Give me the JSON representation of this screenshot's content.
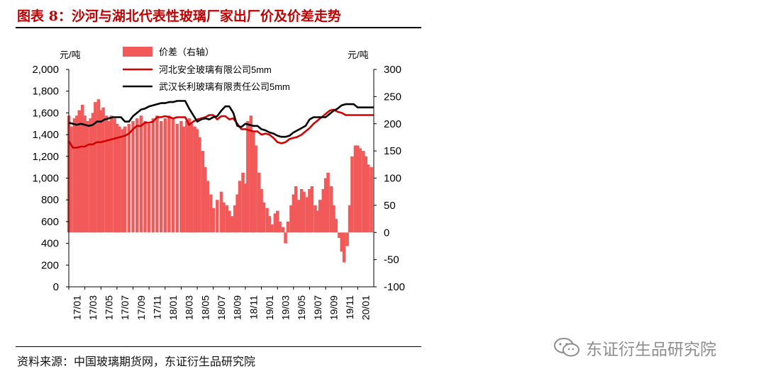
{
  "title": "图表 8：沙河与湖北代表性玻璃厂家出厂价及价差走势",
  "source": "资料来源：中国玻璃期货网，东证衍生品研究院",
  "watermark": "东证衍生品研究院",
  "wm_icon": "wechat-icon",
  "colors": {
    "title": "#c00000",
    "diff": "#f25a5a",
    "hebei": "#d40000",
    "wuhan": "#000000"
  },
  "chart_data": {
    "type": "line",
    "left_unit": "元/吨",
    "right_unit": "元/吨",
    "ylim_left": [
      0,
      2000
    ],
    "yticks_left": [
      "2,000",
      "1,800",
      "1,600",
      "1,400",
      "1,200",
      "1,000",
      "800",
      "600",
      "400",
      "200",
      "0"
    ],
    "ylim_right": [
      -100,
      300
    ],
    "yticks_right": [
      "300",
      "250",
      "200",
      "150",
      "100",
      "50",
      "0",
      "-50",
      "-100"
    ],
    "x_range": [
      0,
      38
    ],
    "xticks": [
      "17/01",
      "17/03",
      "17/05",
      "17/07",
      "17/09",
      "17/11",
      "18/01",
      "18/03",
      "18/05",
      "18/07",
      "18/09",
      "18/11",
      "19/01",
      "19/03",
      "19/05",
      "19/07",
      "19/09",
      "19/11",
      "20/01"
    ],
    "legend": [
      "价差（右轴）",
      "河北安全玻璃有限公司5mm",
      "武汉长利玻璃有限责任公司5mm"
    ],
    "series": [
      {
        "name": "价差（右轴）",
        "type": "bar",
        "axis": "right",
        "x": [
          0,
          0.3,
          0.7,
          1,
          1.3,
          1.7,
          2,
          2.3,
          2.7,
          3,
          3.3,
          3.7,
          4,
          4.3,
          4.7,
          5,
          5.3,
          5.7,
          6,
          6.3,
          6.7,
          7,
          7.5,
          8,
          8.5,
          9,
          9.5,
          10,
          10.5,
          11,
          11.5,
          12,
          12.5,
          13,
          13.5,
          14,
          14.3,
          14.7,
          15,
          15.3,
          15.7,
          16,
          16.3,
          16.7,
          17,
          17.3,
          17.7,
          18,
          18.5,
          19,
          19.3,
          19.7,
          20,
          20.3,
          20.7,
          21,
          21.3,
          21.7,
          22,
          22.3,
          22.7,
          23,
          23.3,
          23.7,
          24,
          24.3,
          24.7,
          25,
          25.3,
          25.7,
          26,
          26.3,
          26.7,
          27,
          27.3,
          27.7,
          28,
          28.3,
          28.7,
          29,
          29.3,
          29.7,
          30,
          30.3,
          30.7,
          31,
          31.3,
          31.7,
          32,
          32.3,
          32.7,
          33,
          33.3,
          33.7,
          34,
          34.3,
          34.7,
          35,
          35.3,
          35.7,
          36,
          36.3,
          36.7,
          37,
          37.3,
          37.7
        ],
        "values": [
          215,
          195,
          210,
          215,
          225,
          235,
          215,
          205,
          210,
          220,
          240,
          245,
          225,
          230,
          215,
          205,
          215,
          210,
          200,
          195,
          190,
          195,
          200,
          205,
          210,
          215,
          205,
          200,
          210,
          215,
          205,
          210,
          215,
          210,
          200,
          205,
          195,
          205,
          210,
          200,
          195,
          190,
          175,
          150,
          120,
          95,
          70,
          45,
          60,
          75,
          55,
          50,
          40,
          30,
          50,
          70,
          95,
          110,
          90,
          205,
          215,
          185,
          160,
          110,
          80,
          55,
          45,
          30,
          15,
          35,
          40,
          20,
          10,
          -20,
          20,
          50,
          70,
          85,
          60,
          80,
          75,
          65,
          80,
          85,
          50,
          40,
          60,
          80,
          100,
          110,
          85,
          50,
          25,
          -10,
          -35,
          -55,
          -25,
          50,
          140,
          160,
          160,
          155,
          150,
          140,
          125,
          120
        ]
      },
      {
        "name": "河北安全玻璃有限公司5mm",
        "axis": "left",
        "x": [
          0,
          0.5,
          1,
          1.5,
          2,
          2.5,
          3,
          3.5,
          4,
          4.5,
          5,
          5.5,
          6,
          6.5,
          7,
          7.5,
          8,
          8.5,
          9,
          9.5,
          10,
          10.5,
          11,
          11.5,
          12,
          12.5,
          13,
          13.5,
          14,
          14.5,
          15,
          15.5,
          16,
          16.5,
          17,
          17.5,
          18,
          18.5,
          19,
          19.5,
          20,
          20.5,
          21,
          21.5,
          22,
          22.5,
          23,
          23.5,
          24,
          24.5,
          25,
          25.5,
          26,
          26.5,
          27,
          27.5,
          28,
          28.5,
          29,
          29.5,
          30,
          30.5,
          31,
          31.5,
          32,
          32.5,
          33,
          33.5,
          34,
          34.5,
          35,
          35.5,
          36,
          36.5,
          37,
          37.5,
          38
        ],
        "values": [
          1340,
          1280,
          1280,
          1290,
          1290,
          1310,
          1310,
          1330,
          1330,
          1340,
          1350,
          1360,
          1370,
          1380,
          1390,
          1410,
          1450,
          1480,
          1480,
          1510,
          1510,
          1520,
          1560,
          1560,
          1570,
          1560,
          1550,
          1560,
          1560,
          1560,
          1490,
          1520,
          1540,
          1550,
          1560,
          1580,
          1580,
          1540,
          1570,
          1570,
          1540,
          1550,
          1500,
          1450,
          1450,
          1440,
          1430,
          1430,
          1400,
          1410,
          1400,
          1370,
          1330,
          1320,
          1330,
          1360,
          1370,
          1380,
          1400,
          1430,
          1460,
          1500,
          1530,
          1560,
          1590,
          1620,
          1630,
          1610,
          1600,
          1580,
          1580,
          1580,
          1580,
          1580,
          1580,
          1580,
          1580
        ]
      },
      {
        "name": "武汉长利玻璃有限责任公司5mm",
        "axis": "left",
        "x": [
          0,
          0.5,
          1,
          1.5,
          2,
          2.5,
          3,
          3.5,
          4,
          4.5,
          5,
          5.5,
          6,
          6.5,
          7,
          7.5,
          8,
          8.5,
          9,
          9.5,
          10,
          10.5,
          11,
          11.5,
          12,
          12.5,
          13,
          13.5,
          14,
          14.5,
          15,
          15.5,
          16,
          16.5,
          17,
          17.5,
          18,
          18.5,
          19,
          19.5,
          20,
          20.5,
          21,
          21.5,
          22,
          22.5,
          23,
          23.5,
          24,
          24.5,
          25,
          25.5,
          26,
          26.5,
          27,
          27.5,
          28,
          28.5,
          29,
          29.5,
          30,
          30.5,
          31,
          31.5,
          32,
          32.5,
          33,
          33.5,
          34,
          34.5,
          35,
          35.5,
          36,
          36.5,
          37,
          37.5,
          38
        ],
        "values": [
          1510,
          1500,
          1490,
          1500,
          1490,
          1480,
          1490,
          1520,
          1520,
          1540,
          1550,
          1560,
          1560,
          1560,
          1520,
          1520,
          1570,
          1600,
          1630,
          1640,
          1660,
          1670,
          1680,
          1690,
          1690,
          1700,
          1700,
          1710,
          1710,
          1710,
          1640,
          1580,
          1520,
          1540,
          1550,
          1540,
          1560,
          1570,
          1620,
          1660,
          1660,
          1600,
          1480,
          1470,
          1500,
          1490,
          1480,
          1480,
          1450,
          1440,
          1420,
          1410,
          1390,
          1380,
          1380,
          1390,
          1420,
          1440,
          1460,
          1480,
          1540,
          1560,
          1560,
          1560,
          1560,
          1590,
          1620,
          1640,
          1670,
          1680,
          1680,
          1680,
          1650,
          1650,
          1650,
          1650,
          1650
        ]
      }
    ]
  }
}
